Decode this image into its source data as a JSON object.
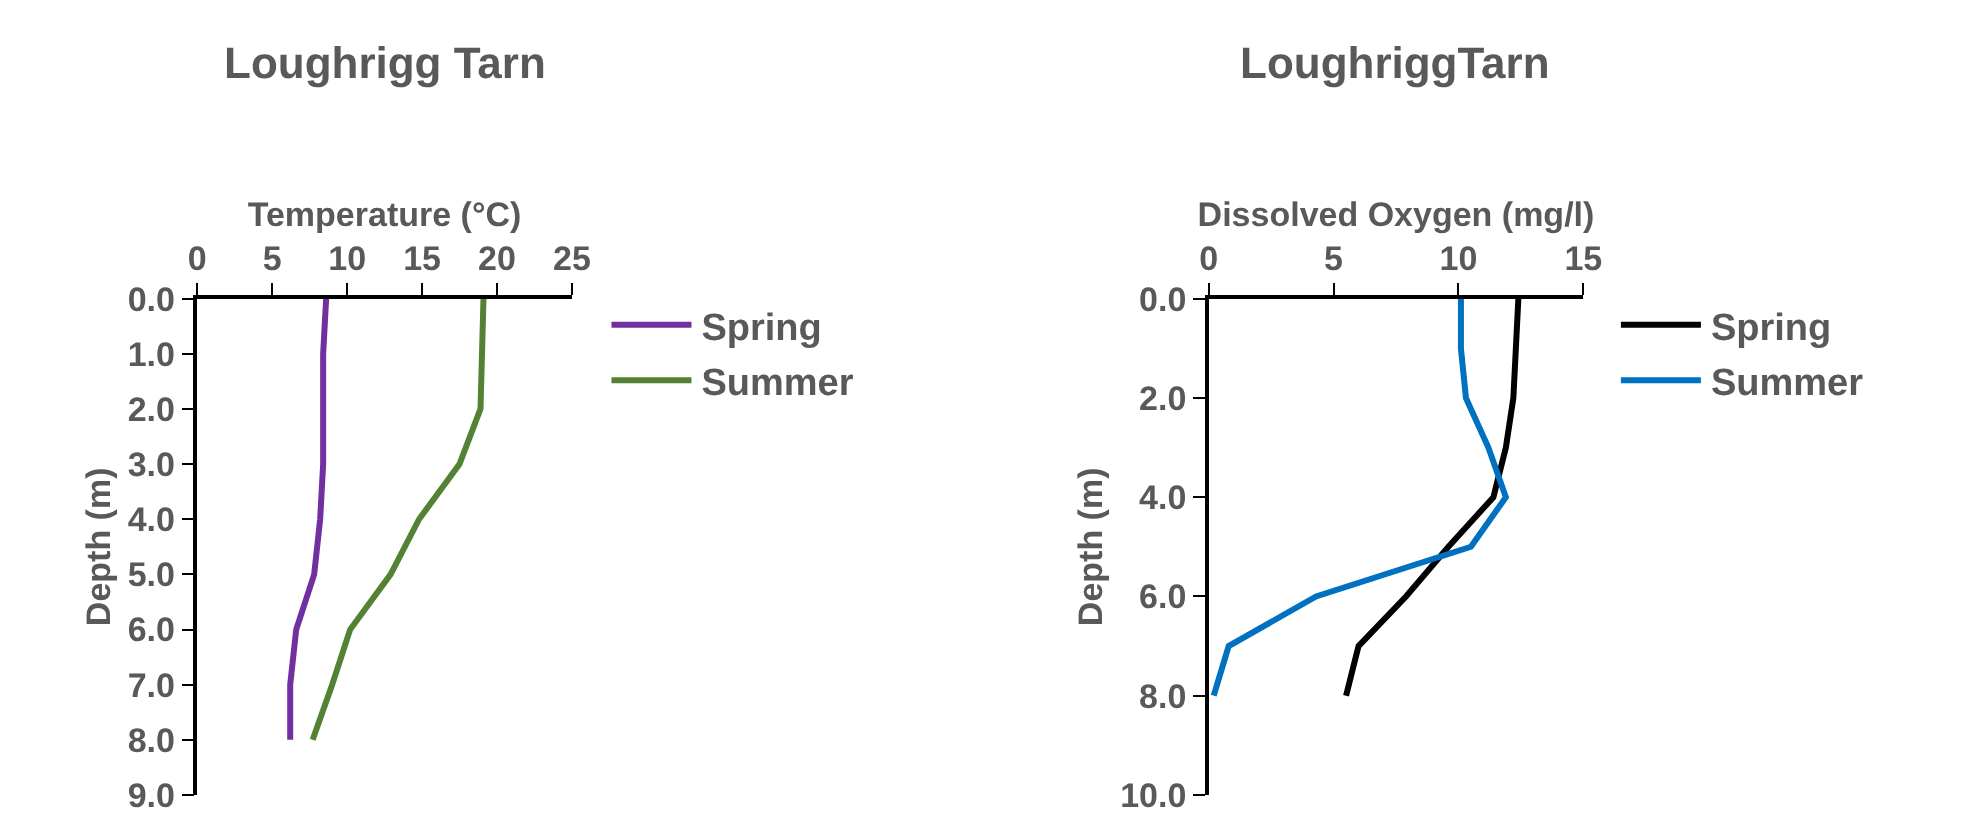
{
  "chart_data": [
    {
      "type": "line",
      "title": "Loughrigg Tarn",
      "xlabel": "Temperature (°C)",
      "ylabel": "Depth (m)",
      "xlim": [
        0,
        25
      ],
      "xticks": [
        0,
        5,
        10,
        15,
        20,
        25
      ],
      "ylim": [
        9,
        0
      ],
      "yticks": [
        {
          "value": 0,
          "label": "0.0"
        },
        {
          "value": 1,
          "label": "1.0"
        },
        {
          "value": 2,
          "label": "2.0"
        },
        {
          "value": 3,
          "label": "3.0"
        },
        {
          "value": 4,
          "label": "4.0"
        },
        {
          "value": 5,
          "label": "5.0"
        },
        {
          "value": 6,
          "label": "6.0"
        },
        {
          "value": 7,
          "label": "7.0"
        },
        {
          "value": 8,
          "label": "8.0"
        },
        {
          "value": 9,
          "label": "9.0"
        }
      ],
      "orientation": "horizontal",
      "legend": "right",
      "series": [
        {
          "name": "Spring",
          "color": "#7030a0",
          "values": [
            8.6,
            8.4,
            8.4,
            8.4,
            8.2,
            7.8,
            6.6,
            6.2,
            6.2
          ],
          "x": [
            0,
            1,
            2,
            3,
            4,
            5,
            6,
            7,
            8
          ]
        },
        {
          "name": "Summer",
          "color": "#548235",
          "values": [
            19.1,
            19.0,
            18.9,
            17.5,
            14.8,
            12.9,
            10.2,
            9.0,
            7.7
          ],
          "x": [
            0,
            1,
            2,
            3,
            4,
            5,
            6,
            7,
            8
          ]
        }
      ]
    },
    {
      "type": "line",
      "title": "LoughriggTarn",
      "xlabel": "Dissolved Oxygen (mg/l)",
      "ylabel": "Depth (m)",
      "xlim": [
        0,
        15
      ],
      "xticks": [
        0,
        5,
        10,
        15
      ],
      "ylim": [
        10,
        0
      ],
      "yticks": [
        {
          "value": 0,
          "label": "0.0"
        },
        {
          "value": 2,
          "label": "2.0"
        },
        {
          "value": 4,
          "label": "4.0"
        },
        {
          "value": 6,
          "label": "6.0"
        },
        {
          "value": 8,
          "label": "8.0"
        },
        {
          "value": 10,
          "label": "10.0"
        }
      ],
      "orientation": "horizontal",
      "legend": "right",
      "series": [
        {
          "name": "Spring",
          "color": "#000000",
          "values": [
            12.4,
            12.3,
            12.2,
            11.9,
            11.4,
            9.6,
            7.9,
            6.0,
            5.5
          ],
          "x": [
            0,
            1,
            2,
            3,
            4,
            5,
            6,
            7,
            8
          ]
        },
        {
          "name": "Summer",
          "color": "#0070c0",
          "values": [
            10.1,
            10.1,
            10.3,
            11.2,
            11.9,
            10.5,
            4.3,
            0.8,
            0.2
          ],
          "x": [
            0,
            1,
            2,
            3,
            4,
            5,
            6,
            7,
            8
          ]
        }
      ]
    }
  ]
}
